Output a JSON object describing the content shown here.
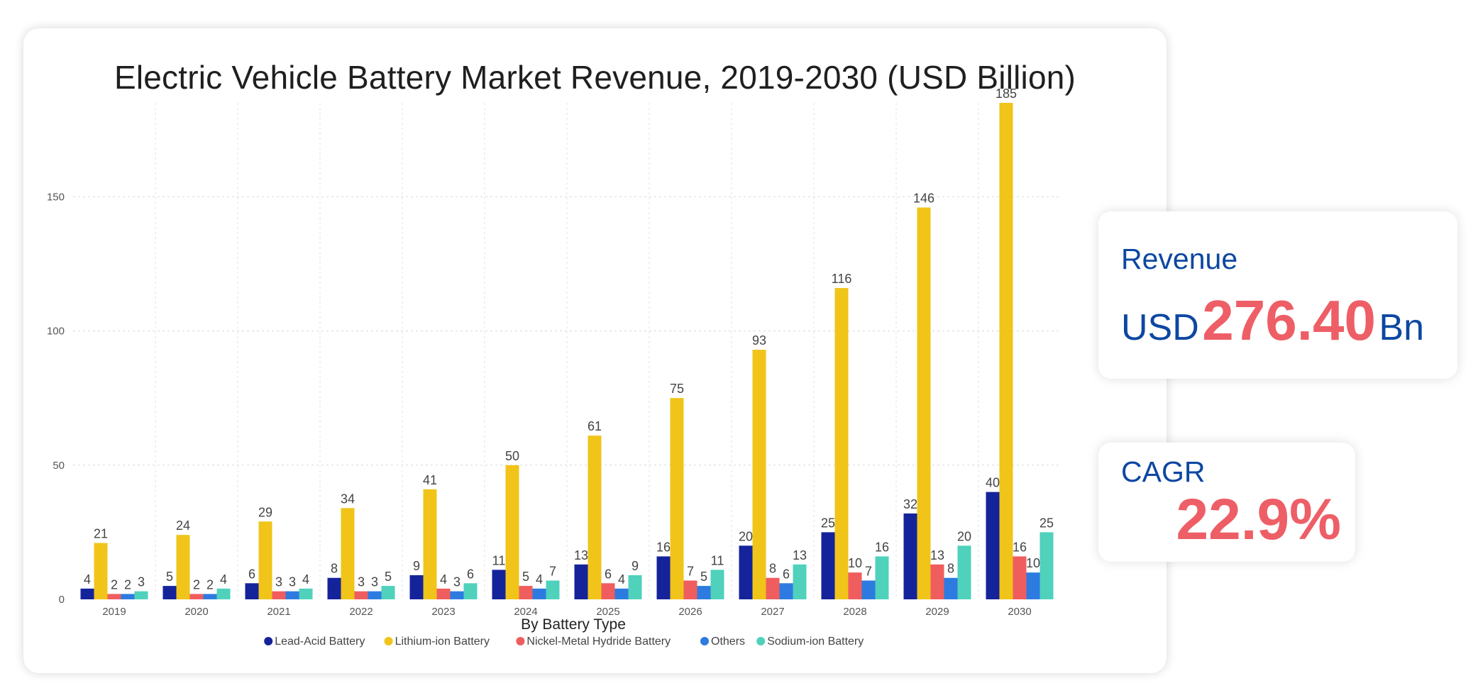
{
  "chart_data": {
    "type": "bar",
    "title": "Electric Vehicle Battery Market Revenue, 2019-2030 (USD Billion)",
    "xlabel": "By Battery Type",
    "ylabel": "",
    "ylim": [
      0,
      185
    ],
    "yticks": [
      0,
      50,
      100,
      150
    ],
    "grid": true,
    "legend_position": "bottom",
    "categories": [
      "2019",
      "2020",
      "2021",
      "2022",
      "2023",
      "2024",
      "2025",
      "2026",
      "2027",
      "2028",
      "2029",
      "2030"
    ],
    "series": [
      {
        "name": "Lead-Acid Battery",
        "color": "#15239b",
        "values": [
          4,
          5,
          6,
          8,
          9,
          11,
          13,
          16,
          20,
          25,
          32,
          40
        ]
      },
      {
        "name": "Lithium-ion Battery",
        "color": "#f0c419",
        "values": [
          21,
          24,
          29,
          34,
          41,
          50,
          61,
          75,
          93,
          116,
          146,
          185
        ]
      },
      {
        "name": "Nickel-Metal Hydride Battery",
        "color": "#f05d5e",
        "values": [
          2,
          2,
          3,
          3,
          4,
          5,
          6,
          7,
          8,
          10,
          13,
          16
        ]
      },
      {
        "name": "Others",
        "color": "#2d7be0",
        "values": [
          2,
          2,
          3,
          3,
          3,
          4,
          4,
          5,
          6,
          7,
          8,
          10
        ]
      },
      {
        "name": "Sodium-ion Battery",
        "color": "#4fd1bc",
        "values": [
          3,
          4,
          4,
          5,
          6,
          7,
          9,
          11,
          13,
          16,
          20,
          25
        ]
      }
    ]
  },
  "kpis": {
    "revenue": {
      "label": "Revenue",
      "prefix": "USD",
      "value": "276.40",
      "suffix": "Bn"
    },
    "cagr": {
      "label": "CAGR",
      "value": "22.9%"
    }
  },
  "colors": {
    "accent_blue": "#0d47a1",
    "accent_red": "#ee5e66"
  }
}
